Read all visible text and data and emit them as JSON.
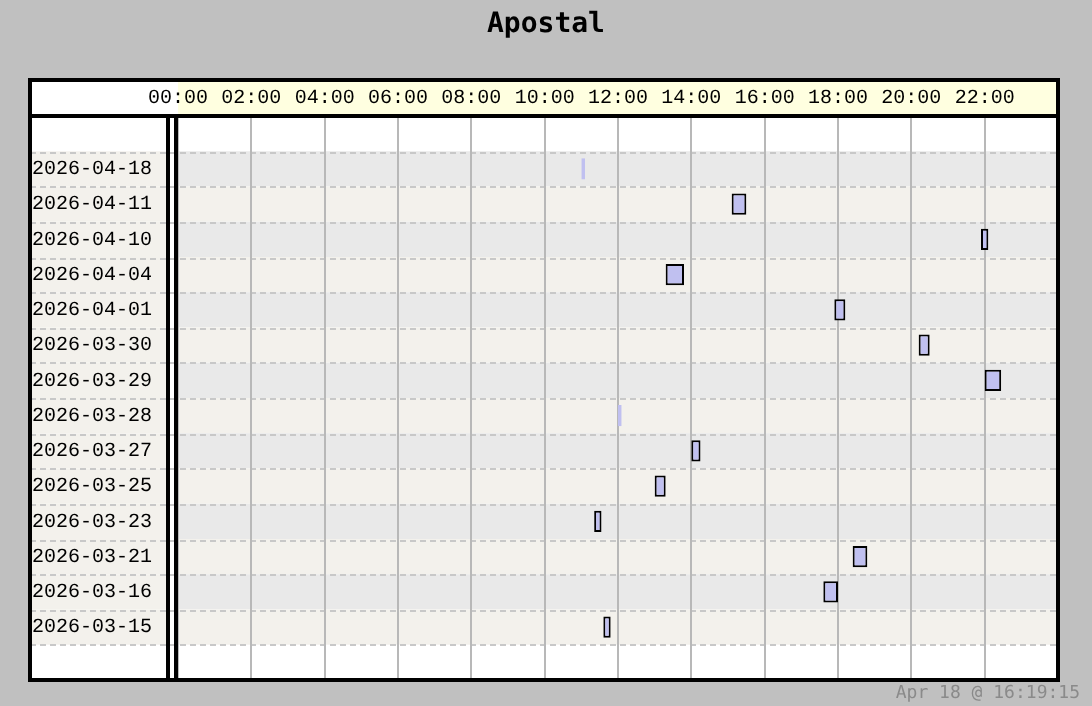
{
  "chart_data": {
    "type": "bar",
    "orientation": "horizontal",
    "title": "Apostal",
    "categories": [
      null,
      "2026-04-18",
      "2026-04-11",
      "2026-04-10",
      "2026-04-04",
      "2026-04-01",
      "2026-03-30",
      "2026-03-29",
      "2026-03-28",
      "2026-03-27",
      "2026-03-25",
      "2026-03-23",
      "2026-03-21",
      "2026-03-16",
      "2026-03-15",
      null
    ],
    "base": [
      null,
      11.0,
      15.1,
      21.9,
      13.3,
      17.9,
      20.2,
      22.0,
      12.0,
      14.0,
      13.0,
      11.35,
      18.4,
      17.6,
      11.6,
      null
    ],
    "values": [
      null,
      0.1,
      0.4,
      0.2,
      0.5,
      0.3,
      0.3,
      0.45,
      0.1,
      0.25,
      0.3,
      0.2,
      0.4,
      0.4,
      0.2,
      null
    ],
    "color": "#c0c0f0",
    "xlim": [
      0,
      24
    ],
    "xticks": [
      {
        "value": 0,
        "label": "00:00"
      },
      {
        "value": 2,
        "label": "02:00"
      },
      {
        "value": 4,
        "label": "04:00"
      },
      {
        "value": 6,
        "label": "06:00"
      },
      {
        "value": 8,
        "label": "08:00"
      },
      {
        "value": 10,
        "label": "10:00"
      },
      {
        "value": 12,
        "label": "12:00"
      },
      {
        "value": 14,
        "label": "14:00"
      },
      {
        "value": 16,
        "label": "16:00"
      },
      {
        "value": 18,
        "label": "18:00"
      },
      {
        "value": 20,
        "label": "20:00"
      },
      {
        "value": 22,
        "label": "22:00"
      },
      {
        "value": 24,
        "label": null
      }
    ],
    "grid": true,
    "legend": false,
    "annotations": [
      "Apr 18 @ 16:19:15"
    ]
  }
}
